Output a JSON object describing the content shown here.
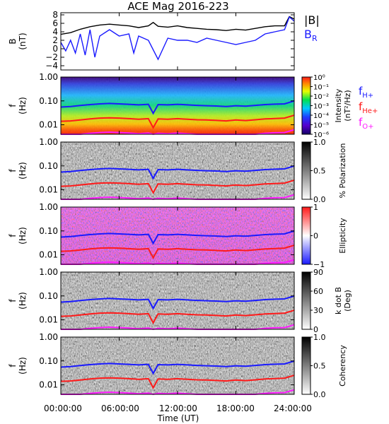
{
  "chart_data": {
    "title": "ACE Mag 2016-223",
    "xlabel": "Time (UT)",
    "x_ticks": [
      "00:00:00",
      "06:00:00",
      "12:00:00",
      "18:00:00",
      "24:00:00"
    ],
    "x_range_hours": [
      0,
      24
    ],
    "panels": [
      {
        "id": "field",
        "type": "line",
        "ylabel": "B",
        "yunit": "(nT)",
        "ylim": [
          -5,
          8.5
        ],
        "yticks": [
          "8",
          "6",
          "4",
          "2",
          "0",
          "−2",
          "−4"
        ],
        "legend": [
          "|B|",
          "BR"
        ],
        "series": [
          {
            "name": "|B|",
            "color": "#000000",
            "x": [
              0,
              1,
              2,
              3,
              4,
              5,
              6,
              7,
              8,
              9,
              9.5,
              10,
              11,
              12,
              13,
              14,
              15,
              16,
              17,
              18,
              19,
              20,
              21,
              22,
              23,
              23.5,
              24
            ],
            "values": [
              3.4,
              3.8,
              4.6,
              5.2,
              5.6,
              5.8,
              5.6,
              5.4,
              5.0,
              5.4,
              6.2,
              5.3,
              5.1,
              5.4,
              5.0,
              4.8,
              4.6,
              4.5,
              4.3,
              4.6,
              4.4,
              4.8,
              5.2,
              5.4,
              5.4,
              7.6,
              7.0
            ]
          },
          {
            "name": "BR",
            "color": "#1a1aff",
            "x": [
              0,
              0.5,
              1,
              1.5,
              2,
              2.5,
              3,
              3.5,
              4,
              5,
              6,
              7,
              7.5,
              8,
              9,
              10,
              11,
              12,
              13,
              14,
              15,
              16,
              17,
              18,
              19,
              20,
              21,
              22,
              23,
              23.5,
              24
            ],
            "values": [
              1.5,
              -0.5,
              2.0,
              -1.0,
              3.5,
              -1.5,
              4.5,
              -2.0,
              3.0,
              4.5,
              3.0,
              3.5,
              -1.0,
              3.0,
              2.0,
              -2.5,
              2.5,
              2.0,
              2.0,
              1.5,
              2.5,
              2.0,
              1.5,
              1.0,
              1.5,
              2.0,
              3.5,
              4.0,
              4.5,
              7.5,
              6.5
            ]
          }
        ]
      },
      {
        "id": "intensity",
        "type": "heatmap",
        "ylabel": "f",
        "yunit": "(Hz)",
        "ylim": [
          0.004,
          1.0
        ],
        "yscale": "log",
        "yticks": [
          "1.00",
          "0.10",
          "0.01"
        ],
        "colorbar": {
          "label": "Intensity",
          "unit": "(nT²/Hz)",
          "ticks": [
            "10⁰",
            "10⁻¹",
            "10⁻²",
            "10⁻³",
            "10⁻⁴",
            "10⁻⁵",
            "10⁻⁶"
          ],
          "scheme": "rainbow"
        },
        "legend": [
          "fH+",
          "fHe+",
          "fO+"
        ]
      },
      {
        "id": "polarization",
        "type": "heatmap",
        "ylabel": "f",
        "yunit": "(Hz)",
        "ylim": [
          0.004,
          1.0
        ],
        "yscale": "log",
        "yticks": [
          "1.00",
          "0.10",
          "0.01"
        ],
        "colorbar": {
          "label": "% Polarization",
          "ticks": [
            "1.0",
            "0.5",
            "0.0"
          ],
          "scheme": "gray"
        }
      },
      {
        "id": "ellipticity",
        "type": "heatmap",
        "ylabel": "f",
        "yunit": "(Hz)",
        "ylim": [
          0.004,
          1.0
        ],
        "yscale": "log",
        "yticks": [
          "1.00",
          "0.10",
          "0.01"
        ],
        "colorbar": {
          "label": "Ellipticity",
          "ticks": [
            "1",
            "0",
            "−1"
          ],
          "scheme": "redblue"
        }
      },
      {
        "id": "kdotb",
        "type": "heatmap",
        "ylabel": "f",
        "yunit": "(Hz)",
        "ylim": [
          0.004,
          1.0
        ],
        "yscale": "log",
        "yticks": [
          "1.00",
          "0.10",
          "0.01"
        ],
        "colorbar": {
          "label": "k dot B",
          "unit": "(Deg)",
          "ticks": [
            "90",
            "60",
            "30",
            "0"
          ],
          "scheme": "gray"
        }
      },
      {
        "id": "coherency",
        "type": "heatmap",
        "ylabel": "f",
        "yunit": "(Hz)",
        "ylim": [
          0.004,
          1.0
        ],
        "yscale": "log",
        "yticks": [
          "1.00",
          "0.10",
          "0.01"
        ],
        "colorbar": {
          "label": "Coherency",
          "ticks": [
            "1.0",
            "0.5",
            "0.0"
          ],
          "scheme": "gray"
        }
      }
    ],
    "gyrofrequency_lines": [
      {
        "name": "fH+",
        "color": "#1a1aff",
        "x": [
          0,
          1,
          2,
          3,
          4,
          5,
          6,
          7,
          8,
          9,
          9.5,
          10,
          11,
          12,
          13,
          14,
          15,
          16,
          17,
          18,
          19,
          20,
          21,
          22,
          23,
          24
        ],
        "values": [
          0.055,
          0.058,
          0.064,
          0.07,
          0.075,
          0.078,
          0.075,
          0.072,
          0.068,
          0.072,
          0.03,
          0.07,
          0.068,
          0.072,
          0.068,
          0.065,
          0.063,
          0.061,
          0.058,
          0.063,
          0.06,
          0.065,
          0.07,
          0.073,
          0.075,
          0.1
        ]
      },
      {
        "name": "fHe+",
        "color": "#ff1a1a",
        "x": [
          0,
          1,
          2,
          3,
          4,
          5,
          6,
          7,
          8,
          9,
          9.5,
          10,
          11,
          12,
          13,
          14,
          15,
          16,
          17,
          18,
          19,
          20,
          21,
          22,
          23,
          24
        ],
        "values": [
          0.014,
          0.0145,
          0.016,
          0.0175,
          0.019,
          0.0195,
          0.019,
          0.018,
          0.017,
          0.018,
          0.0075,
          0.0175,
          0.017,
          0.018,
          0.017,
          0.0162,
          0.0158,
          0.0152,
          0.0145,
          0.0158,
          0.015,
          0.0162,
          0.0175,
          0.0182,
          0.019,
          0.025
        ]
      },
      {
        "name": "fO+",
        "color": "#ff1aff",
        "x": [
          0,
          1,
          2,
          3,
          4,
          5,
          6,
          7,
          8,
          9,
          9.5,
          10,
          11,
          12,
          13,
          14,
          15,
          16,
          17,
          18,
          19,
          20,
          21,
          22,
          23,
          24
        ],
        "values": [
          0.0035,
          0.0036,
          0.004,
          0.0044,
          0.0047,
          0.0049,
          0.0047,
          0.0045,
          0.0042,
          0.0045,
          0.0019,
          0.0044,
          0.0042,
          0.0045,
          0.0042,
          0.004,
          0.0039,
          0.0038,
          0.0036,
          0.0039,
          0.0037,
          0.004,
          0.0044,
          0.0046,
          0.0047,
          0.0062
        ]
      }
    ],
    "grid": false
  }
}
